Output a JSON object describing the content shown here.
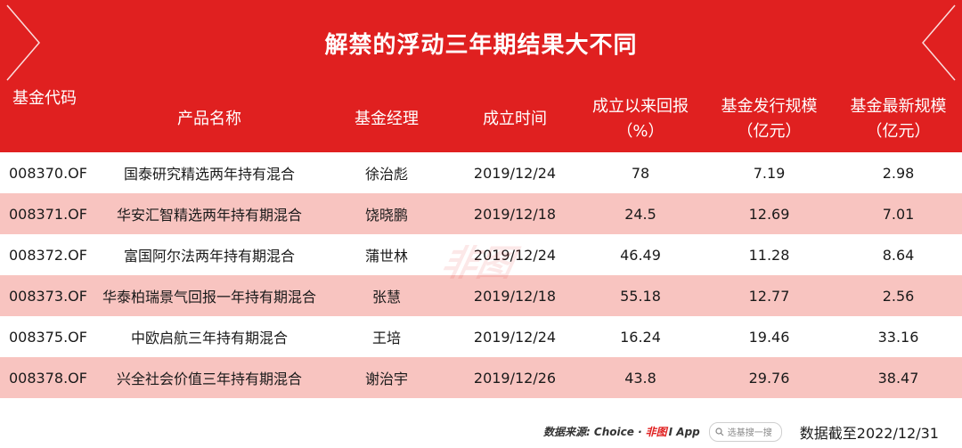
{
  "title": "解禁的浮动三年期结果大不同",
  "headers": {
    "code": "基金代码",
    "name": "产品名称",
    "manager": "基金经理",
    "date": "成立时间",
    "return_l1": "成立以来回报",
    "return_l2": "（%）",
    "issue_l1": "基金发行规模",
    "issue_l2": "（亿元）",
    "latest_l1": "基金最新规模",
    "latest_l2": "（亿元）"
  },
  "chart_data": {
    "type": "table",
    "title": "解禁的浮动三年期结果大不同",
    "columns": [
      "基金代码",
      "产品名称",
      "基金经理",
      "成立时间",
      "成立以来回报（%）",
      "基金发行规模（亿元）",
      "基金最新规模（亿元）"
    ],
    "rows": [
      {
        "code": "008370.OF",
        "name": "国泰研究精选两年持有混合",
        "manager": "徐治彪",
        "date": "2019/12/24",
        "return": "78",
        "issue": "7.19",
        "latest": "2.98"
      },
      {
        "code": "008371.OF",
        "name": "华安汇智精选两年持有期混合",
        "manager": "饶晓鹏",
        "date": "2019/12/18",
        "return": "24.5",
        "issue": "12.69",
        "latest": "7.01"
      },
      {
        "code": "008372.OF",
        "name": "富国阿尔法两年持有期混合",
        "manager": "蒲世林",
        "date": "2019/12/24",
        "return": "46.49",
        "issue": "11.28",
        "latest": "8.64"
      },
      {
        "code": "008373.OF",
        "name": "华泰柏瑞景气回报一年持有期混合",
        "manager": "张慧",
        "date": "2019/12/18",
        "return": "55.18",
        "issue": "12.77",
        "latest": "2.56"
      },
      {
        "code": "008375.OF",
        "name": "中欧启航三年持有期混合",
        "manager": "王培",
        "date": "2019/12/24",
        "return": "16.24",
        "issue": "19.46",
        "latest": "33.16"
      },
      {
        "code": "008378.OF",
        "name": "兴全社会价值三年持有期混合",
        "manager": "谢治宇",
        "date": "2019/12/26",
        "return": "43.8",
        "issue": "29.76",
        "latest": "38.47"
      }
    ]
  },
  "watermark": "非图",
  "footer": {
    "source": "数据来源: Choice ·",
    "brand": "非图",
    "brand_app": "I App",
    "search_placeholder": "选基搜一搜",
    "cutoff": "数据截至2022/12/31"
  },
  "colors": {
    "accent": "#e02020",
    "row_alt": "#f8c4c0"
  }
}
